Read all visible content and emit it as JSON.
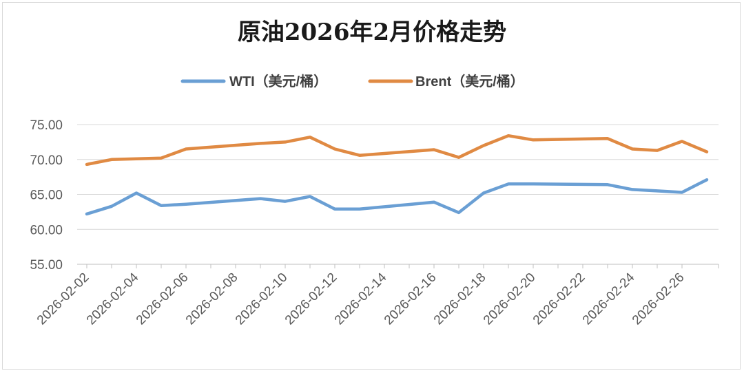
{
  "chart_data": {
    "type": "line",
    "title": "原油2026年2月价格走势",
    "ylim": [
      55,
      75
    ],
    "yticks": [
      "55.00",
      "60.00",
      "65.00",
      "70.00",
      "75.00"
    ],
    "grid": true,
    "legend_position": "top",
    "x": [
      "2026-02-02",
      "2026-02-03",
      "2026-02-04",
      "2026-02-05",
      "2026-02-06",
      "2026-02-09",
      "2026-02-10",
      "2026-02-11",
      "2026-02-12",
      "2026-02-13",
      "2026-02-16",
      "2026-02-17",
      "2026-02-18",
      "2026-02-19",
      "2026-02-20",
      "2026-02-23",
      "2026-02-24",
      "2026-02-25",
      "2026-02-26",
      "2026-02-27"
    ],
    "x_tick_labels": [
      "2026-02-02",
      "2026-02-04",
      "2026-02-06",
      "2026-02-08",
      "2026-02-10",
      "2026-02-12",
      "2026-02-14",
      "2026-02-16",
      "2026-02-18",
      "2026-02-20",
      "2026-02-22",
      "2026-02-24",
      "2026-02-26"
    ],
    "series": [
      {
        "name": "WTI（美元/桶）",
        "color": "#6a9fd4",
        "values": [
          62.2,
          63.3,
          65.2,
          63.4,
          63.6,
          64.4,
          64.0,
          64.7,
          62.9,
          62.9,
          63.9,
          62.4,
          65.2,
          66.5,
          66.5,
          66.4,
          65.7,
          65.5,
          65.3,
          67.1
        ]
      },
      {
        "name": "Brent（美元/桶）",
        "color": "#e08a43",
        "values": [
          69.3,
          70.0,
          70.1,
          70.2,
          71.5,
          72.3,
          72.5,
          73.2,
          71.5,
          70.6,
          71.4,
          70.3,
          72.0,
          73.4,
          72.8,
          73.0,
          71.5,
          71.3,
          72.6,
          71.1
        ]
      }
    ]
  }
}
